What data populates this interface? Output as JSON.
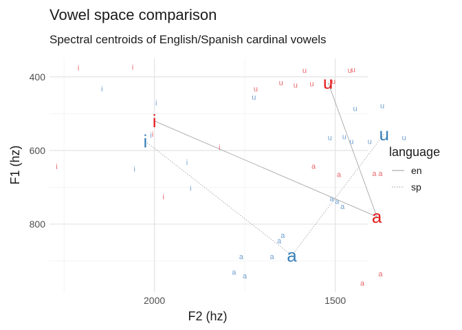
{
  "chart_data": {
    "type": "scatter",
    "title": "Vowel space comparison",
    "subtitle": "Spectral centroids of English/Spanish cardinal vowels",
    "xlabel": "F2 (hz)",
    "ylabel": "F1 (hz)",
    "x_reversed": true,
    "y_reversed": true,
    "xlim": [
      2290,
      1410
    ],
    "ylim": [
      350,
      985
    ],
    "x_ticks": [
      2000,
      1500
    ],
    "y_ticks": [
      400,
      600,
      800
    ],
    "grid": true,
    "legend": {
      "title": "language",
      "placement": "right",
      "entries": [
        {
          "label": "en",
          "line": "solid"
        },
        {
          "label": "sp",
          "line": "dotted"
        }
      ]
    },
    "colors": {
      "en": "#e41a1c",
      "sp": "#377eb8",
      "en_light": "#e8666a",
      "sp_light": "#6f9fd0",
      "line": "#999999"
    },
    "tokens": [
      {
        "lang": "en",
        "vowel": "i",
        "x": 2210,
        "y": 375
      },
      {
        "lang": "en",
        "vowel": "i",
        "x": 2060,
        "y": 373
      },
      {
        "lang": "en",
        "vowel": "i",
        "x": 2270,
        "y": 643
      },
      {
        "lang": "en",
        "vowel": "i",
        "x": 2005,
        "y": 555
      },
      {
        "lang": "en",
        "vowel": "i",
        "x": 1820,
        "y": 591
      },
      {
        "lang": "en",
        "vowel": "i",
        "x": 1975,
        "y": 725
      },
      {
        "lang": "sp",
        "vowel": "i",
        "x": 2145,
        "y": 432
      },
      {
        "lang": "sp",
        "vowel": "i",
        "x": 1995,
        "y": 470
      },
      {
        "lang": "sp",
        "vowel": "i",
        "x": 1910,
        "y": 632
      },
      {
        "lang": "sp",
        "vowel": "i",
        "x": 2010,
        "y": 558
      },
      {
        "lang": "sp",
        "vowel": "i",
        "x": 2055,
        "y": 650
      },
      {
        "lang": "sp",
        "vowel": "i",
        "x": 1900,
        "y": 702
      },
      {
        "lang": "en",
        "vowel": "u",
        "x": 1585,
        "y": 382
      },
      {
        "lang": "en",
        "vowel": "u",
        "x": 1460,
        "y": 382
      },
      {
        "lang": "en",
        "vowel": "u",
        "x": 1450,
        "y": 380
      },
      {
        "lang": "en",
        "vowel": "u",
        "x": 1650,
        "y": 415
      },
      {
        "lang": "en",
        "vowel": "u",
        "x": 1610,
        "y": 422
      },
      {
        "lang": "en",
        "vowel": "u",
        "x": 1505,
        "y": 412
      },
      {
        "lang": "en",
        "vowel": "u",
        "x": 1565,
        "y": 418
      },
      {
        "lang": "en",
        "vowel": "u",
        "x": 1720,
        "y": 432
      },
      {
        "lang": "sp",
        "vowel": "u",
        "x": 1725,
        "y": 455
      },
      {
        "lang": "sp",
        "vowel": "u",
        "x": 1445,
        "y": 485
      },
      {
        "lang": "sp",
        "vowel": "u",
        "x": 1370,
        "y": 478
      },
      {
        "lang": "sp",
        "vowel": "u",
        "x": 1310,
        "y": 565
      },
      {
        "lang": "sp",
        "vowel": "u",
        "x": 1475,
        "y": 562
      },
      {
        "lang": "sp",
        "vowel": "u",
        "x": 1455,
        "y": 575
      },
      {
        "lang": "sp",
        "vowel": "u",
        "x": 1405,
        "y": 575
      },
      {
        "lang": "sp",
        "vowel": "u",
        "x": 1515,
        "y": 565
      },
      {
        "lang": "en",
        "vowel": "a",
        "x": 1490,
        "y": 665
      },
      {
        "lang": "en",
        "vowel": "a",
        "x": 1375,
        "y": 662
      },
      {
        "lang": "en",
        "vowel": "a",
        "x": 1392,
        "y": 662
      },
      {
        "lang": "en",
        "vowel": "a",
        "x": 1375,
        "y": 935
      },
      {
        "lang": "en",
        "vowel": "a",
        "x": 1425,
        "y": 960
      },
      {
        "lang": "en",
        "vowel": "a",
        "x": 1560,
        "y": 642
      },
      {
        "lang": "sp",
        "vowel": "a",
        "x": 1495,
        "y": 738
      },
      {
        "lang": "sp",
        "vowel": "a",
        "x": 1675,
        "y": 888
      },
      {
        "lang": "sp",
        "vowel": "a",
        "x": 1780,
        "y": 930
      },
      {
        "lang": "sp",
        "vowel": "a",
        "x": 1510,
        "y": 730
      },
      {
        "lang": "sp",
        "vowel": "a",
        "x": 1480,
        "y": 752
      },
      {
        "lang": "sp",
        "vowel": "a",
        "x": 1645,
        "y": 830
      },
      {
        "lang": "sp",
        "vowel": "a",
        "x": 1655,
        "y": 845
      },
      {
        "lang": "sp",
        "vowel": "a",
        "x": 1760,
        "y": 888
      },
      {
        "lang": "sp",
        "vowel": "a",
        "x": 1750,
        "y": 940
      }
    ],
    "centroids": [
      {
        "lang": "en",
        "vowel": "i",
        "x": 2000,
        "y": 520
      },
      {
        "lang": "en",
        "vowel": "u",
        "x": 1520,
        "y": 415
      },
      {
        "lang": "en",
        "vowel": "a",
        "x": 1385,
        "y": 780
      },
      {
        "lang": "sp",
        "vowel": "i",
        "x": 2025,
        "y": 575
      },
      {
        "lang": "sp",
        "vowel": "u",
        "x": 1365,
        "y": 555
      },
      {
        "lang": "sp",
        "vowel": "a",
        "x": 1620,
        "y": 885
      }
    ]
  }
}
